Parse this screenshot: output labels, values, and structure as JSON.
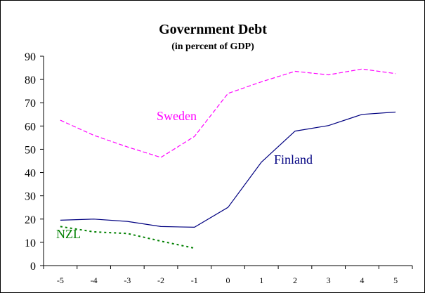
{
  "chart_data": {
    "type": "line",
    "title": "Government Debt",
    "subtitle": "(in percent of GDP)",
    "xlabel": "",
    "ylabel": "",
    "x": [
      -5,
      -4,
      -3,
      -2,
      -1,
      0,
      1,
      2,
      3,
      4,
      5
    ],
    "ylim": [
      0,
      90
    ],
    "y_ticks": [
      0,
      10,
      20,
      30,
      40,
      50,
      60,
      70,
      80,
      90
    ],
    "grid": false,
    "legend": "none (series labelled directly on the plot)",
    "series": [
      {
        "name": "Sweden",
        "color": "#ff00ff",
        "line_style": "dashed",
        "values": [
          62.5,
          56,
          51,
          46.5,
          55.5,
          74,
          79,
          83.5,
          82,
          84.5,
          82.5
        ]
      },
      {
        "name": "Finland",
        "color": "#000080",
        "line_style": "solid",
        "values": [
          19.5,
          20,
          19,
          16.8,
          16.5,
          25,
          44.5,
          57.8,
          60.2,
          65,
          66
        ]
      },
      {
        "name": "NZL",
        "color": "#008000",
        "line_style": "dotted",
        "values": [
          16.8,
          14.5,
          13.8,
          10.5,
          7.5,
          null,
          null,
          null,
          null,
          null,
          null
        ]
      }
    ]
  }
}
